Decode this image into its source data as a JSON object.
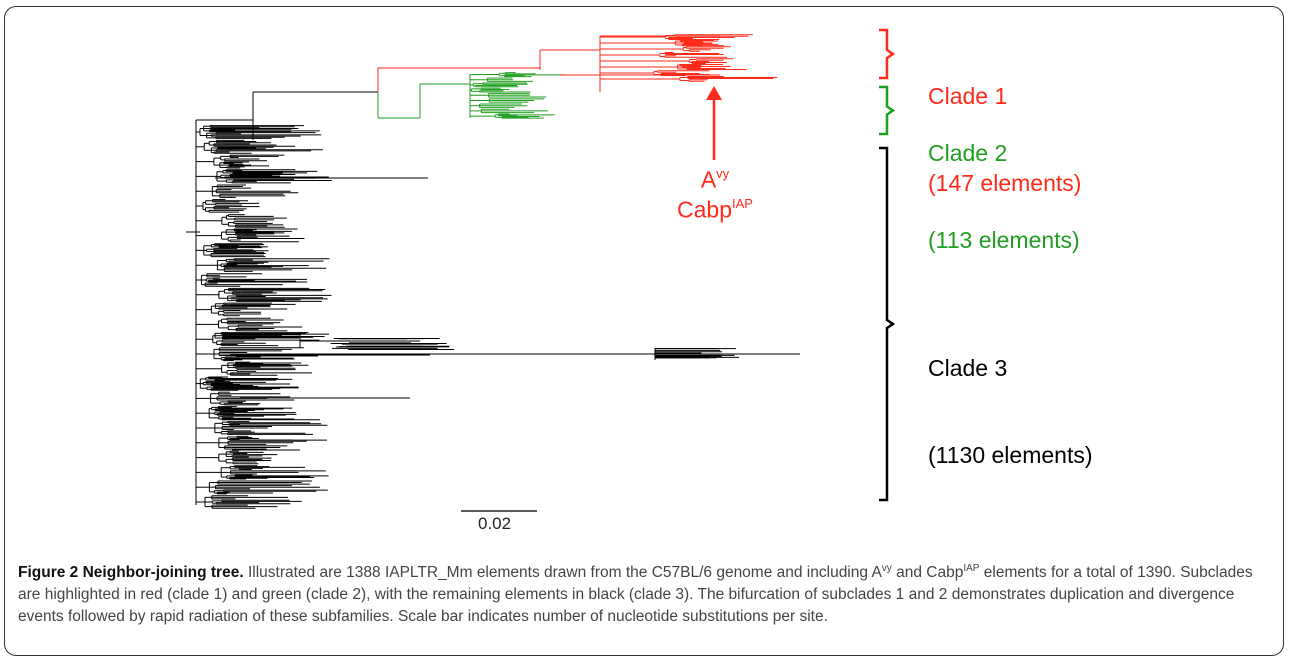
{
  "colors": {
    "clade1": "#ff2a1a",
    "clade2": "#1f9e1f",
    "clade3": "#000000"
  },
  "clade_labels": [
    {
      "name": "Clade 1",
      "count": "(147 elements)",
      "color": "#ff2a1a"
    },
    {
      "name": "Clade 2",
      "count": "(113 elements)",
      "color": "#1f9e1f"
    },
    {
      "name": "Clade 3",
      "count": "(1130 elements)",
      "color": "#000000"
    }
  ],
  "markers": {
    "first_base": "A",
    "first_sup": "vy",
    "second_base": "Cabp",
    "second_sup": "IAP"
  },
  "scale_bar": {
    "label": "0.02",
    "value": 0.02
  },
  "caption": {
    "figure_label": "Figure 2",
    "title": "Neighbor-joining tree.",
    "text_1": " Illustrated are 1388 IAPLTR_Mm elements drawn from the C57BL/6 genome and including A",
    "sup_1": "vy",
    "text_2": " and Cabp",
    "sup_2": "IAP",
    "text_3": " elements for a total of 1390. Subclades are highlighted in red (clade 1) and green (clade 2), with the remaining elements in black (clade 3). The bifurcation of subclades 1 and 2 demonstrates duplication and divergence events followed by rapid radiation of these subfamilies. Scale bar indicates number of nucleotide substitutions per site."
  }
}
